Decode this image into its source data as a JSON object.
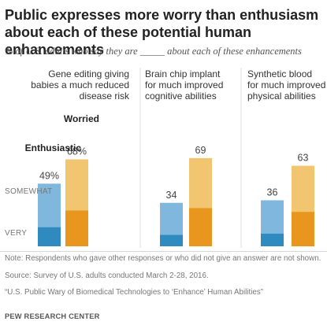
{
  "header": {
    "title": "Public expresses more worry than enthusiasm about each of these potential human enhancements",
    "subtitle": "% of U.S. adults who say they are _____ about each of these enhancements"
  },
  "chart_data": {
    "type": "bar",
    "stacked": true,
    "ylim": [
      0,
      80
    ],
    "categories": [
      {
        "label_lines": [
          "Gene editing giving",
          "babies a much reduced",
          "disease risk"
        ]
      },
      {
        "label_lines": [
          "Brain chip implant",
          "for much improved",
          "cognitive abilities"
        ]
      },
      {
        "label_lines": [
          "Synthetic blood",
          "for much improved",
          "physical abilities"
        ]
      }
    ],
    "series": [
      {
        "name": "Enthusiastic",
        "total": [
          49,
          34,
          36
        ],
        "total_labels": [
          "49%",
          "34",
          "36"
        ],
        "very": [
          15,
          9,
          10
        ],
        "color_very": "#2f8bbf",
        "color_somewhat": "#7fb8dc"
      },
      {
        "name": "Worried",
        "total": [
          68,
          69,
          63
        ],
        "total_labels": [
          "68%",
          "69",
          "63"
        ],
        "very": [
          28,
          30,
          27
        ],
        "color_very": "#e8961e",
        "color_somewhat": "#f2c571"
      }
    ],
    "segment_labels": {
      "somewhat": "SOMEWHAT",
      "very": "VERY"
    }
  },
  "footer": {
    "note": "Note: Respondents who gave other responses or who did not give an answer are not shown.",
    "source": "Source: Survey of U.S. adults conducted March 2-28, 2016.",
    "report": "“U.S. Public Wary of Biomedical Technologies to ‘Enhance’ Human Abilities”",
    "brand": "PEW RESEARCH CENTER"
  }
}
